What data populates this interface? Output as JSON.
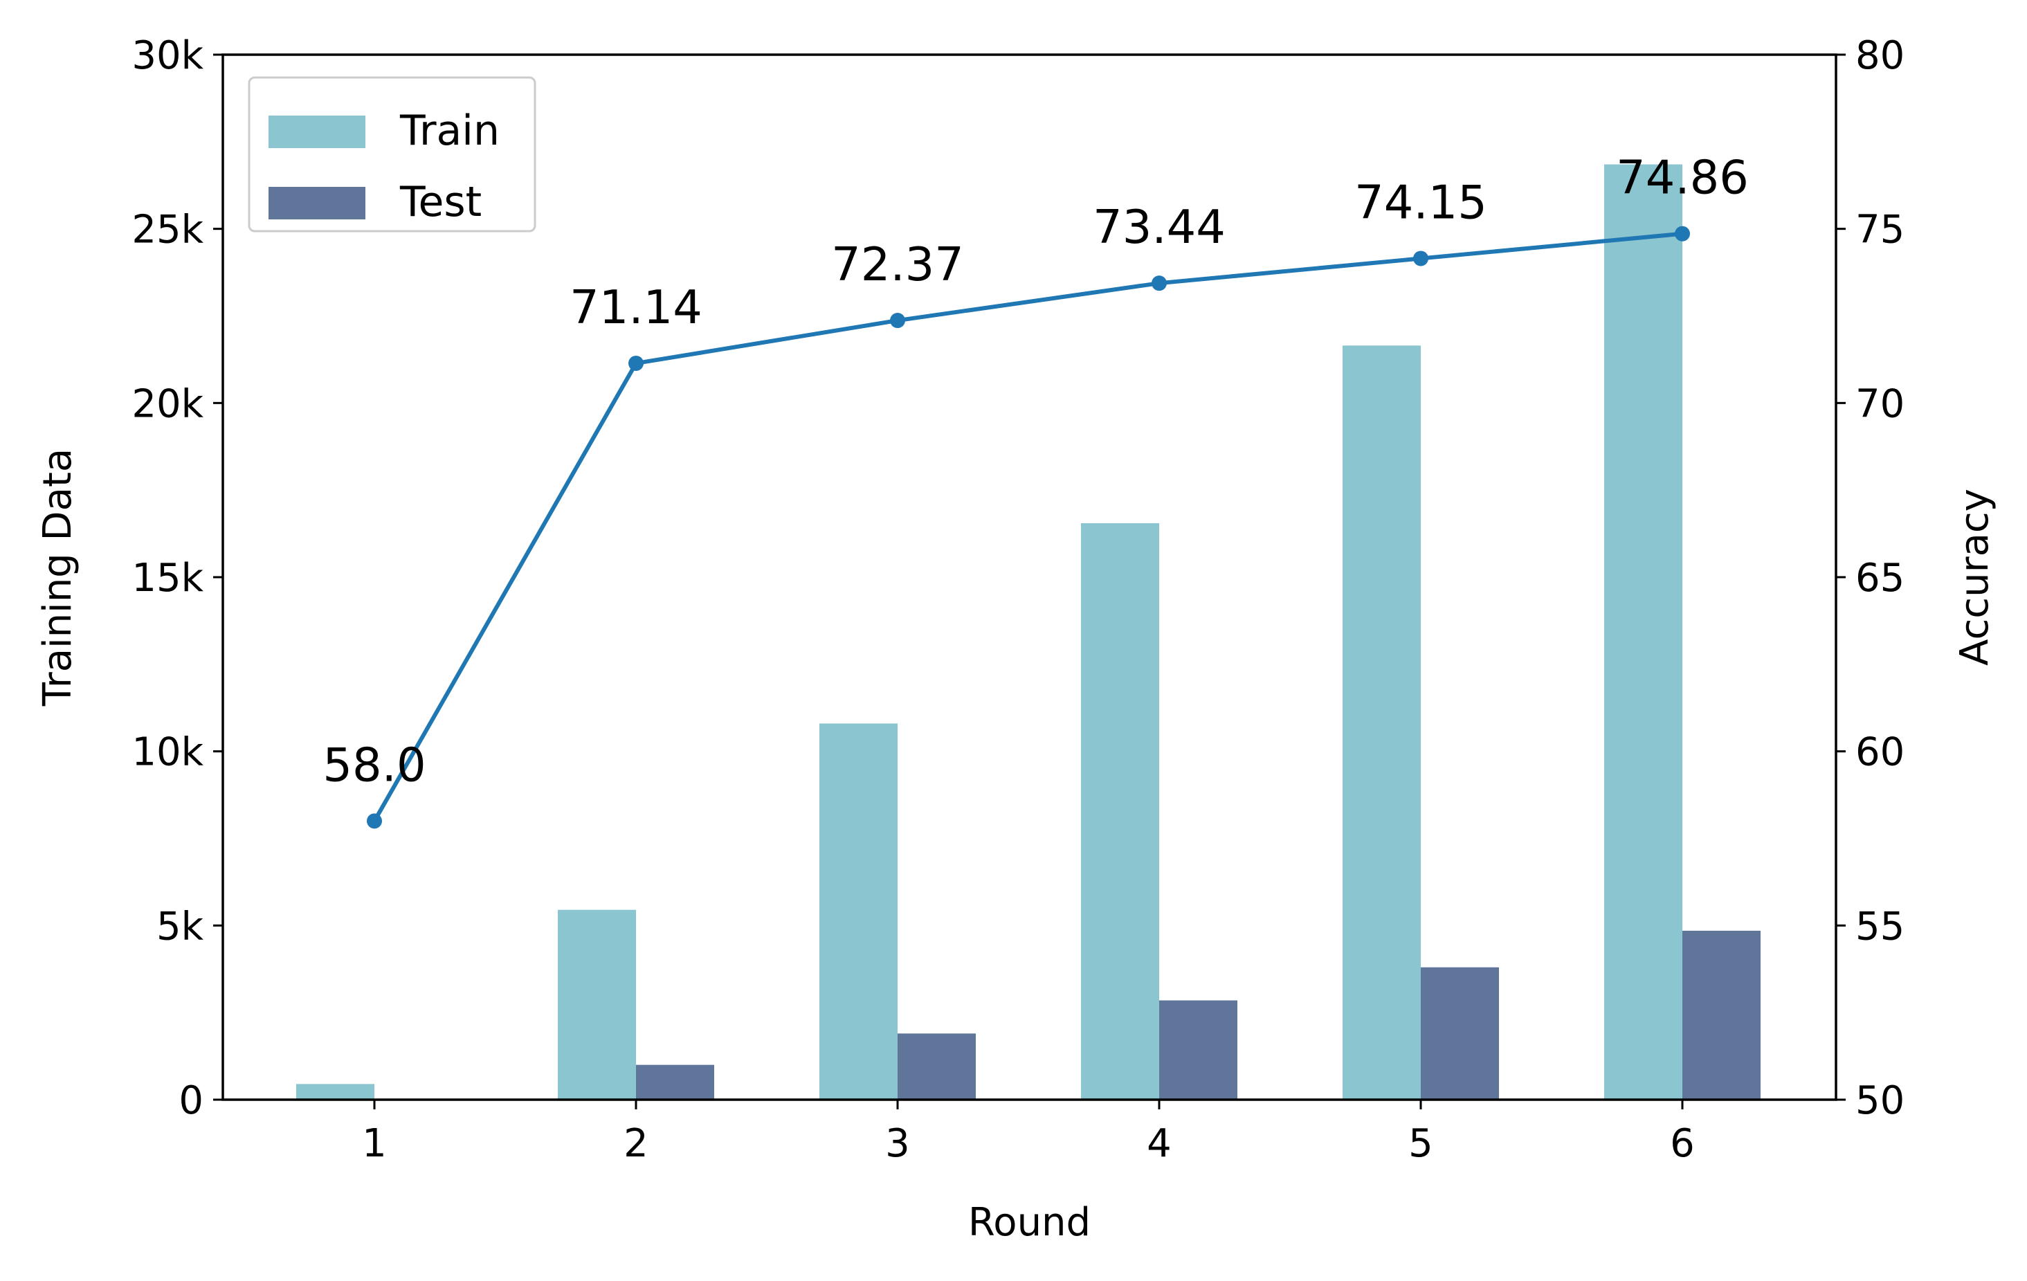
{
  "chart_data": {
    "type": "bar",
    "categories": [
      "1",
      "2",
      "3",
      "4",
      "5",
      "6"
    ],
    "series": [
      {
        "name": "Train",
        "type": "bar",
        "axis": "left",
        "color": "#8bc5d0",
        "values": [
          450,
          5450,
          10800,
          16550,
          21650,
          26850
        ]
      },
      {
        "name": "Test",
        "type": "bar",
        "axis": "left",
        "color": "#5f7599",
        "values": [
          0,
          1000,
          1900,
          2850,
          3800,
          4850
        ]
      },
      {
        "type": "line",
        "axis": "right",
        "color": "#1f77b4",
        "values": [
          58.0,
          71.14,
          72.37,
          73.44,
          74.15,
          74.86
        ]
      }
    ],
    "data_labels": [
      "58.0",
      "71.14",
      "72.37",
      "73.44",
      "74.15",
      "74.86"
    ],
    "xlabel": "Round",
    "ylabel": "Training Data",
    "ylabel_right": "Accuracy",
    "ylim": [
      0,
      30000
    ],
    "ylim_right": [
      50,
      80
    ],
    "yticks": [
      0,
      5000,
      10000,
      15000,
      20000,
      25000,
      30000
    ],
    "ytick_labels": [
      "0",
      "5k",
      "10k",
      "15k",
      "20k",
      "25k",
      "30k"
    ],
    "yticks_right": [
      50,
      55,
      60,
      65,
      70,
      75,
      80
    ],
    "ytick_labels_right": [
      "50",
      "55",
      "60",
      "65",
      "70",
      "75",
      "80"
    ],
    "grid": false,
    "legend": {
      "position": "top-left",
      "entries": [
        "Train",
        "Test"
      ]
    }
  }
}
